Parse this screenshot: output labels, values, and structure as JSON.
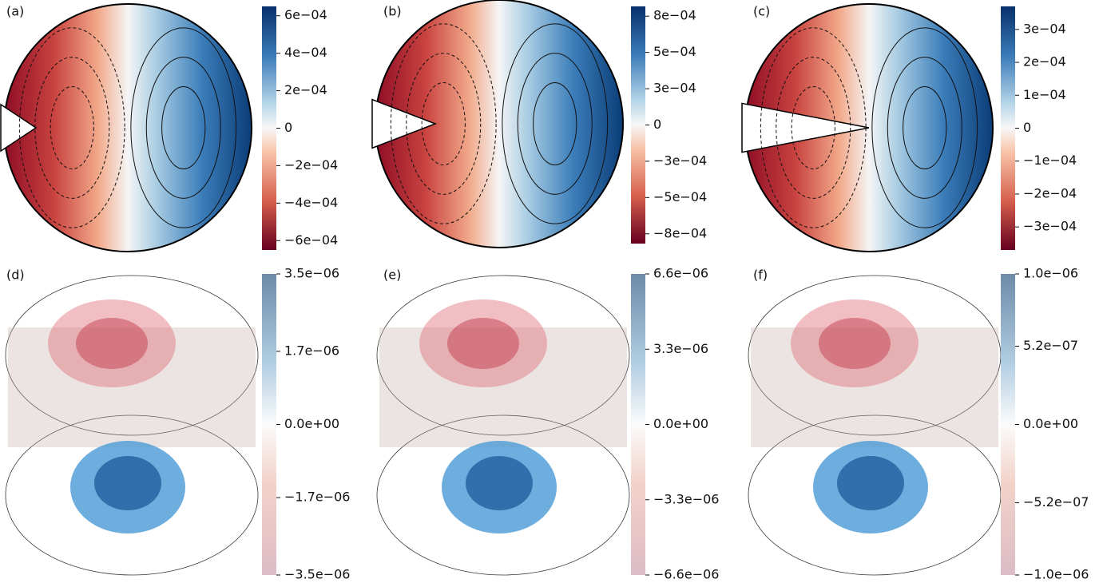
{
  "panels": [
    {
      "label": "(a)",
      "colorbar": {
        "lim": [
          -0.00065,
          0.00065
        ],
        "ticks": [
          {
            "value": 0.0006,
            "label": "6e−04"
          },
          {
            "value": 0.0004,
            "label": "4e−04"
          },
          {
            "value": 0.0002,
            "label": "2e−04"
          },
          0,
          {
            "value": -0.0002,
            "label": "−2e−04"
          },
          {
            "value": -0.0004,
            "label": "−4e−04"
          },
          {
            "value": -0.0006,
            "label": "−6e−04"
          }
        ]
      }
    },
    {
      "label": "(b)",
      "colorbar": {
        "lim": [
          -0.00085,
          0.00085
        ],
        "ticks": [
          {
            "value": 0.00078,
            "label": "8e−04"
          },
          {
            "value": 0.00052,
            "label": "5e−04"
          },
          {
            "value": 0.00026,
            "label": "3e−04"
          },
          0,
          {
            "value": -0.00026,
            "label": "−3e−04"
          },
          {
            "value": -0.00052,
            "label": "−5e−04"
          },
          {
            "value": -0.00078,
            "label": "−8e−04"
          }
        ]
      }
    },
    {
      "label": "(c)",
      "colorbar": {
        "lim": [
          -0.00037,
          0.00037
        ],
        "ticks": [
          {
            "value": 0.0003,
            "label": "3e−04"
          },
          {
            "value": 0.0002,
            "label": "2e−04"
          },
          {
            "value": 0.0001,
            "label": "1e−04"
          },
          0,
          {
            "value": -0.0001,
            "label": "−1e−04"
          },
          {
            "value": -0.0002,
            "label": "−2e−04"
          },
          {
            "value": -0.0003,
            "label": "−3e−04"
          }
        ]
      }
    },
    {
      "label": "(d)",
      "colorbar": {
        "lim": [
          -3.5e-06,
          3.5e-06
        ],
        "ticks": [
          {
            "value": 3.5e-06,
            "label": "3.5e−06"
          },
          {
            "value": 1.7e-06,
            "label": "1.7e−06"
          },
          {
            "value": 0,
            "label": "0.0e+00"
          },
          {
            "value": -1.7e-06,
            "label": "−1.7e−06"
          },
          {
            "value": -3.5e-06,
            "label": "−3.5e−06"
          }
        ]
      }
    },
    {
      "label": "(e)",
      "colorbar": {
        "lim": [
          -6.6e-06,
          6.6e-06
        ],
        "ticks": [
          {
            "value": 6.6e-06,
            "label": "6.6e−06"
          },
          {
            "value": 3.3e-06,
            "label": "3.3e−06"
          },
          {
            "value": 0,
            "label": "0.0e+00"
          },
          {
            "value": -3.3e-06,
            "label": "−3.3e−06"
          },
          {
            "value": -6.6e-06,
            "label": "−6.6e−06"
          }
        ]
      }
    },
    {
      "label": "(f)",
      "colorbar": {
        "lim": [
          -1e-06,
          1e-06
        ],
        "ticks": [
          {
            "value": 1e-06,
            "label": "1.0e−06"
          },
          {
            "value": 5.2e-07,
            "label": "5.2e−07"
          },
          {
            "value": 0,
            "label": "0.0e+00"
          },
          {
            "value": -5.2e-07,
            "label": "−5.2e−07"
          },
          {
            "value": -1e-06,
            "label": "−1.0e−06"
          }
        ]
      }
    }
  ]
}
